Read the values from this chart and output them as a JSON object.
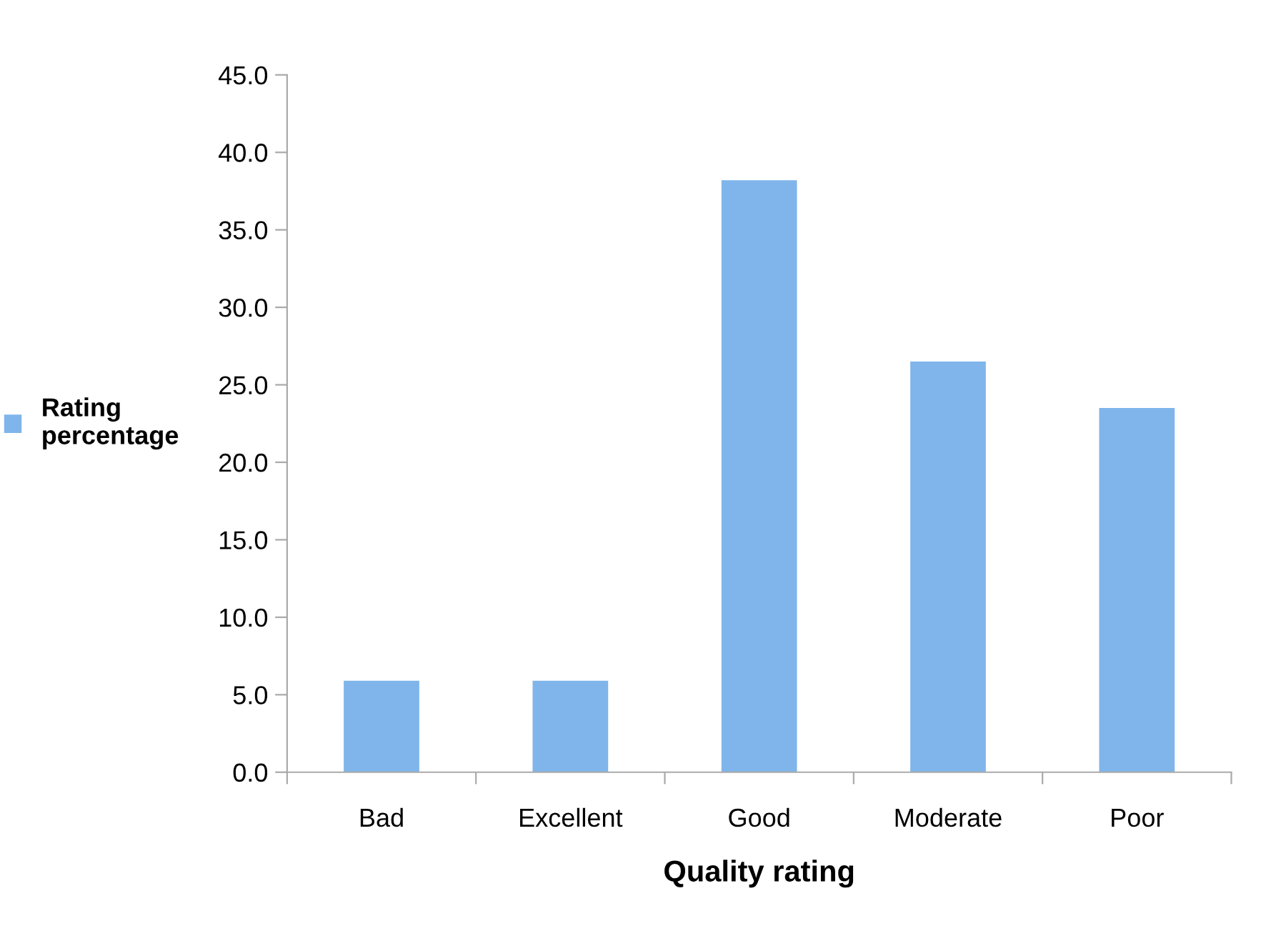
{
  "chart_data": {
    "type": "bar",
    "xlabel": "Quality rating",
    "categories": [
      "Bad",
      "Excellent",
      "Good",
      "Moderate",
      "Poor"
    ],
    "series": [
      {
        "name": "Rating percentage",
        "color": "#7fb5ea",
        "values": [
          5.9,
          5.9,
          38.2,
          26.5,
          23.5
        ]
      }
    ],
    "ylim": [
      0,
      45
    ],
    "yticks": [
      {
        "value": 0,
        "label": "0.0"
      },
      {
        "value": 5,
        "label": "5.0"
      },
      {
        "value": 10,
        "label": "10.0"
      },
      {
        "value": 15,
        "label": "15.0"
      },
      {
        "value": 20,
        "label": "20.0"
      },
      {
        "value": 25,
        "label": "25.0"
      },
      {
        "value": 30,
        "label": "30.0"
      },
      {
        "value": 35,
        "label": "35.0"
      },
      {
        "value": 40,
        "label": "40.0"
      },
      {
        "value": 45,
        "label": "45.0"
      }
    ],
    "grid": false,
    "legend": "left"
  }
}
